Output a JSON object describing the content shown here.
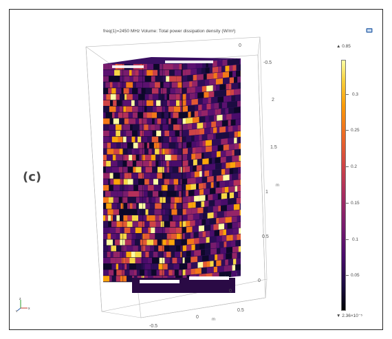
{
  "panel_label": "(c)",
  "plot_title": "freq(1)=2450 MHz   Volume: Total power dissipation density (W/m³)",
  "colorbar": {
    "max_label": "▲ 0.85",
    "min_label": "▼ 2.36×10⁻⁵",
    "ticks": [
      "0.3",
      "0.25",
      "0.2",
      "0.15",
      "0.1",
      "0.05"
    ],
    "colormap": "inferno"
  },
  "axes": {
    "z_ticks": [
      "2",
      "1.5",
      "1",
      "0.5",
      "0"
    ],
    "z_unit": "m",
    "y_ticks": [
      "0",
      "-0.5"
    ],
    "x_ticks": [
      "-0.5",
      "0",
      "0.5"
    ],
    "x_unit": "m",
    "y_unit": "m"
  },
  "triad": {
    "x": "x",
    "y": "y",
    "z": "z"
  },
  "icons": {
    "corner": "camera-snapshot-icon"
  }
}
